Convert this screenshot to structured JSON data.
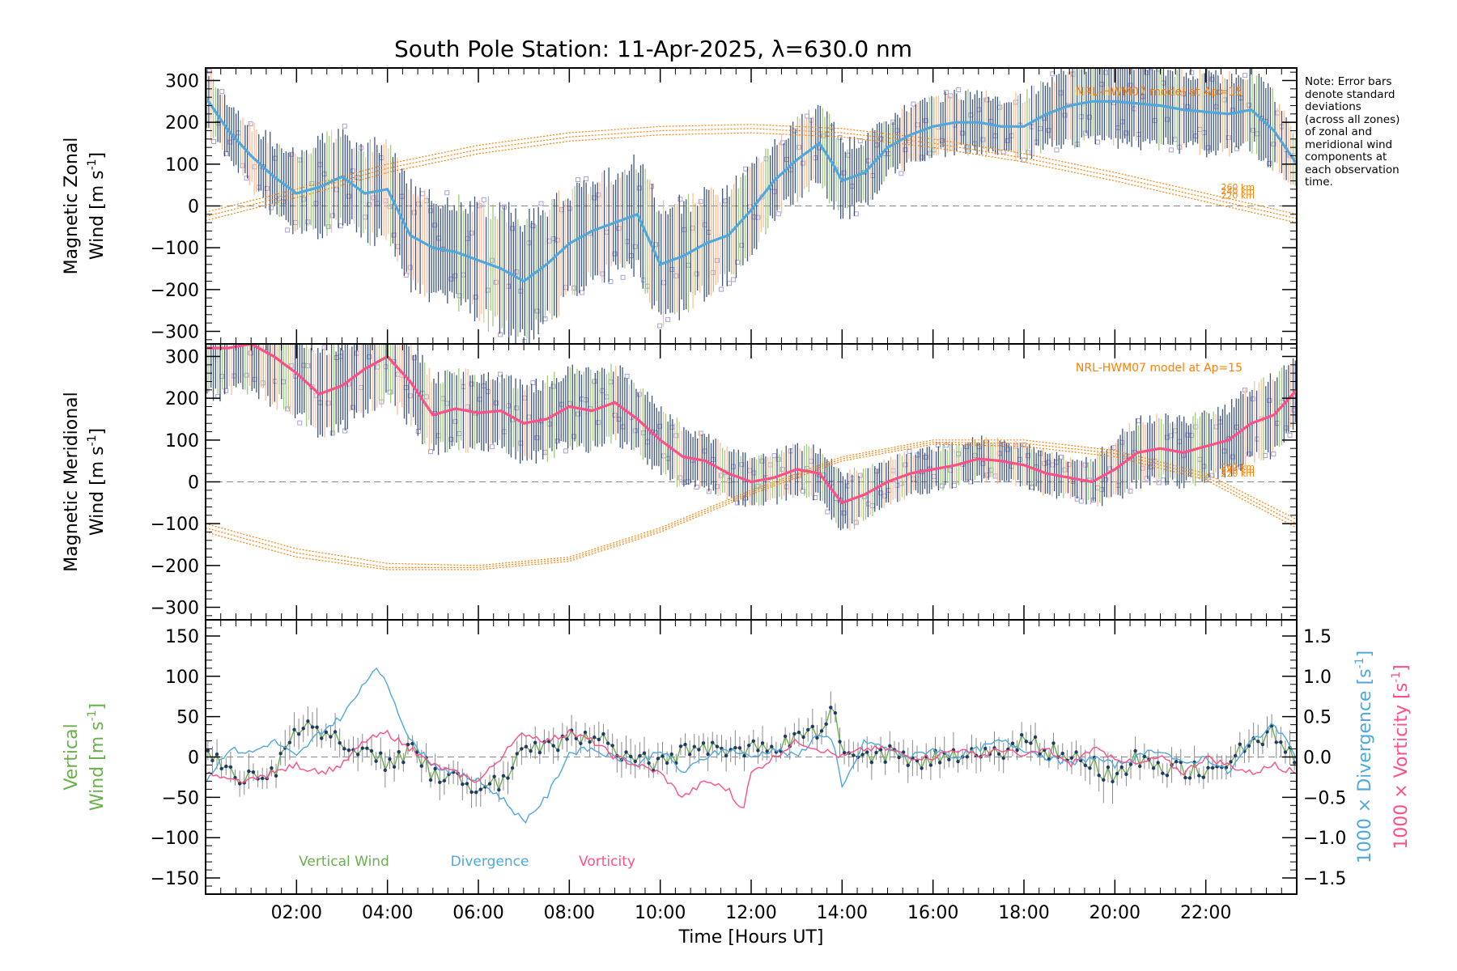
{
  "title": "South Pole Station: 11-Apr-2025, λ=630.0 nm",
  "note_lines": [
    "Note: Error bars",
    "denote standard",
    "deviations",
    "(across all zones)",
    "of zonal and",
    "meridional wind",
    "components at",
    "each observation",
    "time."
  ],
  "colors": {
    "zonal_mean": "#4ea8de",
    "meridional_mean": "#ff4f86",
    "vertical": "#6ab04c",
    "divergence": "#4ea8de",
    "vorticity": "#ff4f86",
    "model": "#ff7f00",
    "scatter": "#aaa0dd",
    "errbar_dark": "#1f3a66",
    "errbar_green": "#8fc26a",
    "errbar_orange": "#ffb38a",
    "zero_line": "#888888"
  },
  "chart_data": [
    {
      "type": "line",
      "panel": "zonal",
      "ylabel_line1": "Magnetic Zonal",
      "ylabel_line2": "Wind [m s",
      "ylabel_sup": "-1",
      "ylabel_close": "]",
      "ylim": [
        -330,
        330
      ],
      "yticks": [
        -300,
        -200,
        -100,
        0,
        100,
        200,
        300
      ],
      "yticklabels": [
        "−300",
        "−200",
        "−100",
        "0",
        "100",
        "200",
        "300"
      ],
      "xlim": [
        0,
        24
      ],
      "mean_series": {
        "name": "Zonal wind",
        "x": [
          0,
          0.5,
          1,
          1.5,
          2,
          2.5,
          3,
          3.5,
          4,
          4.5,
          5,
          5.5,
          6,
          6.5,
          7,
          7.5,
          8,
          8.5,
          9,
          9.5,
          10,
          10.5,
          11,
          11.5,
          12,
          12.5,
          13,
          13.5,
          13.8,
          14,
          14.5,
          15,
          15.5,
          16,
          16.5,
          17,
          17.5,
          18,
          18.5,
          19,
          19.5,
          20,
          20.5,
          21,
          21.5,
          22,
          22.5,
          23,
          23.5,
          24
        ],
        "y": [
          260,
          180,
          120,
          70,
          30,
          45,
          70,
          30,
          40,
          -70,
          -100,
          -110,
          -130,
          -150,
          -180,
          -140,
          -90,
          -60,
          -40,
          -20,
          -140,
          -120,
          -90,
          -70,
          -10,
          60,
          110,
          150,
          100,
          60,
          80,
          140,
          170,
          190,
          200,
          200,
          190,
          190,
          220,
          240,
          250,
          250,
          245,
          240,
          230,
          225,
          220,
          230,
          180,
          100
        ],
        "err": [
          80,
          75,
          75,
          90,
          100,
          110,
          110,
          110,
          120,
          120,
          120,
          130,
          140,
          150,
          150,
          140,
          130,
          120,
          120,
          130,
          140,
          130,
          120,
          110,
          100,
          90,
          90,
          90,
          100,
          90,
          80,
          70,
          70,
          70,
          70,
          70,
          70,
          75,
          80,
          90,
          100,
          100,
          100,
          95,
          95,
          95,
          90,
          90,
          90,
          70
        ]
      },
      "model": {
        "label": "NRL-HWM07 model at Ap=",
        "label_value": "15",
        "levels": [
          {
            "name": "260 km",
            "x": [
              0,
              2,
              4,
              6,
              8,
              10,
              12,
              14,
              16,
              18,
              20,
              22,
              24
            ],
            "y": [
              -15,
              40,
              100,
              145,
              175,
              190,
              195,
              185,
              160,
              125,
              80,
              30,
              -20
            ]
          },
          {
            "name": "240 km",
            "x": [
              0,
              2,
              4,
              6,
              8,
              10,
              12,
              14,
              16,
              18,
              20,
              22,
              24
            ],
            "y": [
              -25,
              30,
              90,
              135,
              165,
              180,
              185,
              175,
              150,
              115,
              70,
              20,
              -30
            ]
          },
          {
            "name": "220 km",
            "x": [
              0,
              2,
              4,
              6,
              8,
              10,
              12,
              14,
              16,
              18,
              20,
              22,
              24
            ],
            "y": [
              -35,
              20,
              80,
              125,
              155,
              170,
              175,
              165,
              140,
              105,
              60,
              10,
              -40
            ]
          }
        ]
      }
    },
    {
      "type": "line",
      "panel": "meridional",
      "ylabel_line1": "Magnetic Meridional",
      "ylabel_line2": "Wind [m s",
      "ylabel_sup": "-1",
      "ylabel_close": "]",
      "ylim": [
        -330,
        330
      ],
      "yticks": [
        -300,
        -200,
        -100,
        0,
        100,
        200,
        300
      ],
      "yticklabels": [
        "−300",
        "−200",
        "−100",
        "0",
        "100",
        "200",
        "300"
      ],
      "xlim": [
        0,
        24
      ],
      "mean_series": {
        "name": "Meridional wind",
        "x": [
          0,
          0.5,
          1,
          1.5,
          2,
          2.5,
          3,
          3.5,
          4,
          4.5,
          5,
          5.5,
          6,
          6.5,
          7,
          7.5,
          8,
          8.5,
          9,
          9.5,
          10,
          10.5,
          11,
          11.5,
          12,
          12.5,
          13,
          13.5,
          14,
          14.5,
          15,
          15.5,
          16,
          16.5,
          17,
          17.5,
          18,
          18.5,
          19,
          19.5,
          20,
          20.5,
          21,
          21.5,
          22,
          22.5,
          23,
          23.5,
          24
        ],
        "y": [
          320,
          320,
          330,
          300,
          260,
          210,
          230,
          270,
          300,
          240,
          160,
          175,
          165,
          170,
          140,
          150,
          180,
          170,
          190,
          150,
          100,
          60,
          50,
          20,
          0,
          10,
          30,
          20,
          -50,
          -30,
          0,
          20,
          30,
          40,
          55,
          50,
          40,
          20,
          10,
          0,
          30,
          70,
          80,
          70,
          85,
          100,
          140,
          160,
          220
        ],
        "err": [
          120,
          110,
          110,
          110,
          100,
          100,
          100,
          100,
          100,
          100,
          90,
          90,
          90,
          90,
          90,
          90,
          90,
          90,
          90,
          80,
          80,
          70,
          60,
          60,
          60,
          60,
          60,
          60,
          70,
          60,
          50,
          50,
          50,
          50,
          50,
          50,
          50,
          50,
          50,
          60,
          70,
          80,
          80,
          80,
          80,
          80,
          90,
          90,
          90
        ]
      },
      "model": {
        "label": "NRL-HWM07 model at Ap=",
        "label_value": "15",
        "levels": [
          {
            "name": "260 km",
            "x": [
              0,
              2,
              4,
              6,
              8,
              10,
              12,
              14,
              16,
              18,
              20,
              22,
              24
            ],
            "y": [
              -100,
              -160,
              -195,
              -200,
              -180,
              -110,
              -20,
              60,
              100,
              100,
              75,
              20,
              -90
            ]
          },
          {
            "name": "240 km",
            "x": [
              0,
              2,
              4,
              6,
              8,
              10,
              12,
              14,
              16,
              18,
              20,
              22,
              24
            ],
            "y": [
              -110,
              -170,
              -205,
              -205,
              -185,
              -115,
              -25,
              55,
              95,
              92,
              68,
              12,
              -100
            ]
          },
          {
            "name": "220 km",
            "x": [
              0,
              2,
              4,
              6,
              8,
              10,
              12,
              14,
              16,
              18,
              20,
              22,
              24
            ],
            "y": [
              -120,
              -180,
              -210,
              -210,
              -190,
              -120,
              -30,
              50,
              90,
              85,
              60,
              5,
              -110
            ]
          }
        ]
      }
    },
    {
      "type": "line",
      "panel": "vertical",
      "ylabel_line1": "Vertical",
      "ylabel_line2": "Wind [m s",
      "ylabel_sup": "-1",
      "ylabel_close": "]",
      "ylim": [
        -170,
        170
      ],
      "yticks": [
        -150,
        -100,
        -50,
        0,
        50,
        100,
        150
      ],
      "yticklabels": [
        "−150",
        "−100",
        "−50",
        "0",
        "50",
        "100",
        "150"
      ],
      "xlim": [
        0,
        24
      ],
      "xticks": [
        2,
        4,
        6,
        8,
        10,
        12,
        14,
        16,
        18,
        20,
        22
      ],
      "xticklabels": [
        "02:00",
        "04:00",
        "06:00",
        "08:00",
        "10:00",
        "12:00",
        "14:00",
        "16:00",
        "18:00",
        "20:00",
        "22:00"
      ],
      "xlabel": "Time [Hours UT]",
      "right_axis": {
        "ylim": [
          -1.7,
          1.7
        ],
        "yticks": [
          -1.5,
          -1.0,
          -0.5,
          0.0,
          0.5,
          1.0,
          1.5
        ],
        "yticklabels": [
          "−1.5",
          "−1.0",
          "−0.5",
          "0.0",
          "0.5",
          "1.0",
          "1.5"
        ],
        "label_divergence": "1000 × Divergence [s",
        "label_vorticity": "1000 × Vorticity [s",
        "label_sup": "-1",
        "label_close": "]"
      },
      "legend": [
        "Vertical Wind",
        "Divergence",
        "Vorticity"
      ],
      "series": [
        {
          "name": "Vertical Wind",
          "axis": "left",
          "x": [
            0,
            0.5,
            1,
            1.5,
            2,
            2.5,
            3,
            3.5,
            4,
            4.5,
            5,
            5.5,
            6,
            6.5,
            7,
            7.5,
            8,
            8.5,
            9,
            9.5,
            10,
            10.5,
            11,
            11.5,
            12,
            12.5,
            13,
            13.5,
            13.8,
            14,
            14.5,
            15,
            15.5,
            16,
            16.5,
            17,
            17.5,
            18,
            18.5,
            19,
            19.5,
            20,
            20.5,
            21,
            21.5,
            22,
            22.5,
            23,
            23.5,
            24
          ],
          "y": [
            10,
            -20,
            -30,
            -20,
            40,
            30,
            15,
            5,
            -10,
            10,
            -20,
            -30,
            -40,
            -30,
            10,
            15,
            20,
            30,
            10,
            0,
            -10,
            10,
            15,
            0,
            10,
            15,
            20,
            30,
            60,
            10,
            0,
            5,
            0,
            -5,
            5,
            10,
            0,
            20,
            10,
            0,
            -10,
            -30,
            0,
            -10,
            -15,
            -20,
            -10,
            20,
            30,
            -10
          ],
          "err": [
            15,
            15,
            15,
            15,
            20,
            20,
            15,
            15,
            15,
            15,
            15,
            15,
            15,
            15,
            15,
            15,
            15,
            15,
            15,
            15,
            15,
            15,
            15,
            15,
            15,
            15,
            15,
            15,
            15,
            15,
            15,
            15,
            15,
            15,
            15,
            15,
            15,
            15,
            15,
            15,
            15,
            25,
            15,
            15,
            15,
            15,
            15,
            15,
            15,
            15
          ]
        },
        {
          "name": "Divergence",
          "axis": "right",
          "x": [
            0,
            0.5,
            1,
            1.5,
            2,
            2.5,
            3,
            3.5,
            3.7,
            4,
            4.5,
            5,
            5.5,
            6,
            6.5,
            7,
            7.5,
            8,
            8.5,
            9,
            9.5,
            10,
            10.5,
            11,
            11.5,
            12,
            12.5,
            13,
            13.5,
            13.8,
            14,
            14.5,
            15,
            15.5,
            16,
            16.5,
            17,
            17.5,
            18,
            18.5,
            19,
            19.5,
            20,
            20.5,
            21,
            21.5,
            22,
            22.5,
            23,
            23.5,
            24
          ],
          "y": [
            -0.3,
            0.1,
            0.05,
            0.2,
            0.0,
            0.3,
            0.5,
            0.9,
            1.1,
            0.9,
            0.2,
            -0.1,
            -0.2,
            -0.3,
            -0.5,
            -0.8,
            -0.5,
            0.05,
            0.1,
            0.0,
            -0.1,
            0.1,
            -0.2,
            0.0,
            0.1,
            0.0,
            0.1,
            0.0,
            0.3,
            0.2,
            -0.4,
            0.2,
            0.1,
            0.0,
            0.1,
            0.0,
            0.1,
            0.2,
            0.1,
            0.0,
            -0.1,
            0.0,
            -0.1,
            0.0,
            0.1,
            -0.1,
            0.0,
            -0.2,
            0.2,
            0.4,
            0.0
          ]
        },
        {
          "name": "Vorticity",
          "axis": "right",
          "x": [
            0,
            0.5,
            1,
            1.5,
            2,
            2.5,
            3,
            3.5,
            4,
            4.5,
            5,
            5.5,
            6,
            6.5,
            7,
            7.5,
            8,
            8.5,
            9,
            9.5,
            10,
            10.5,
            11,
            11.5,
            11.8,
            12,
            12.5,
            13,
            13.5,
            14,
            14.5,
            15,
            15.5,
            16,
            16.5,
            17,
            17.5,
            18,
            18.5,
            19,
            19.5,
            20,
            20.5,
            21,
            21.5,
            22,
            22.5,
            23,
            23.5,
            24
          ],
          "y": [
            -0.2,
            -0.3,
            -0.3,
            -0.2,
            -0.1,
            -0.2,
            -0.1,
            0.2,
            0.3,
            0.1,
            -0.1,
            -0.2,
            -0.3,
            0.0,
            0.3,
            0.2,
            0.3,
            0.2,
            0.0,
            -0.1,
            -0.2,
            -0.5,
            -0.3,
            -0.4,
            -0.7,
            -0.2,
            0.0,
            0.2,
            0.1,
            0.0,
            0.1,
            0.1,
            0.0,
            0.0,
            0.1,
            0.0,
            0.1,
            0.0,
            0.1,
            -0.1,
            0.1,
            0.0,
            -0.1,
            0.0,
            -0.2,
            0.0,
            -0.1,
            -0.2,
            -0.1,
            -0.2
          ]
        }
      ]
    }
  ]
}
